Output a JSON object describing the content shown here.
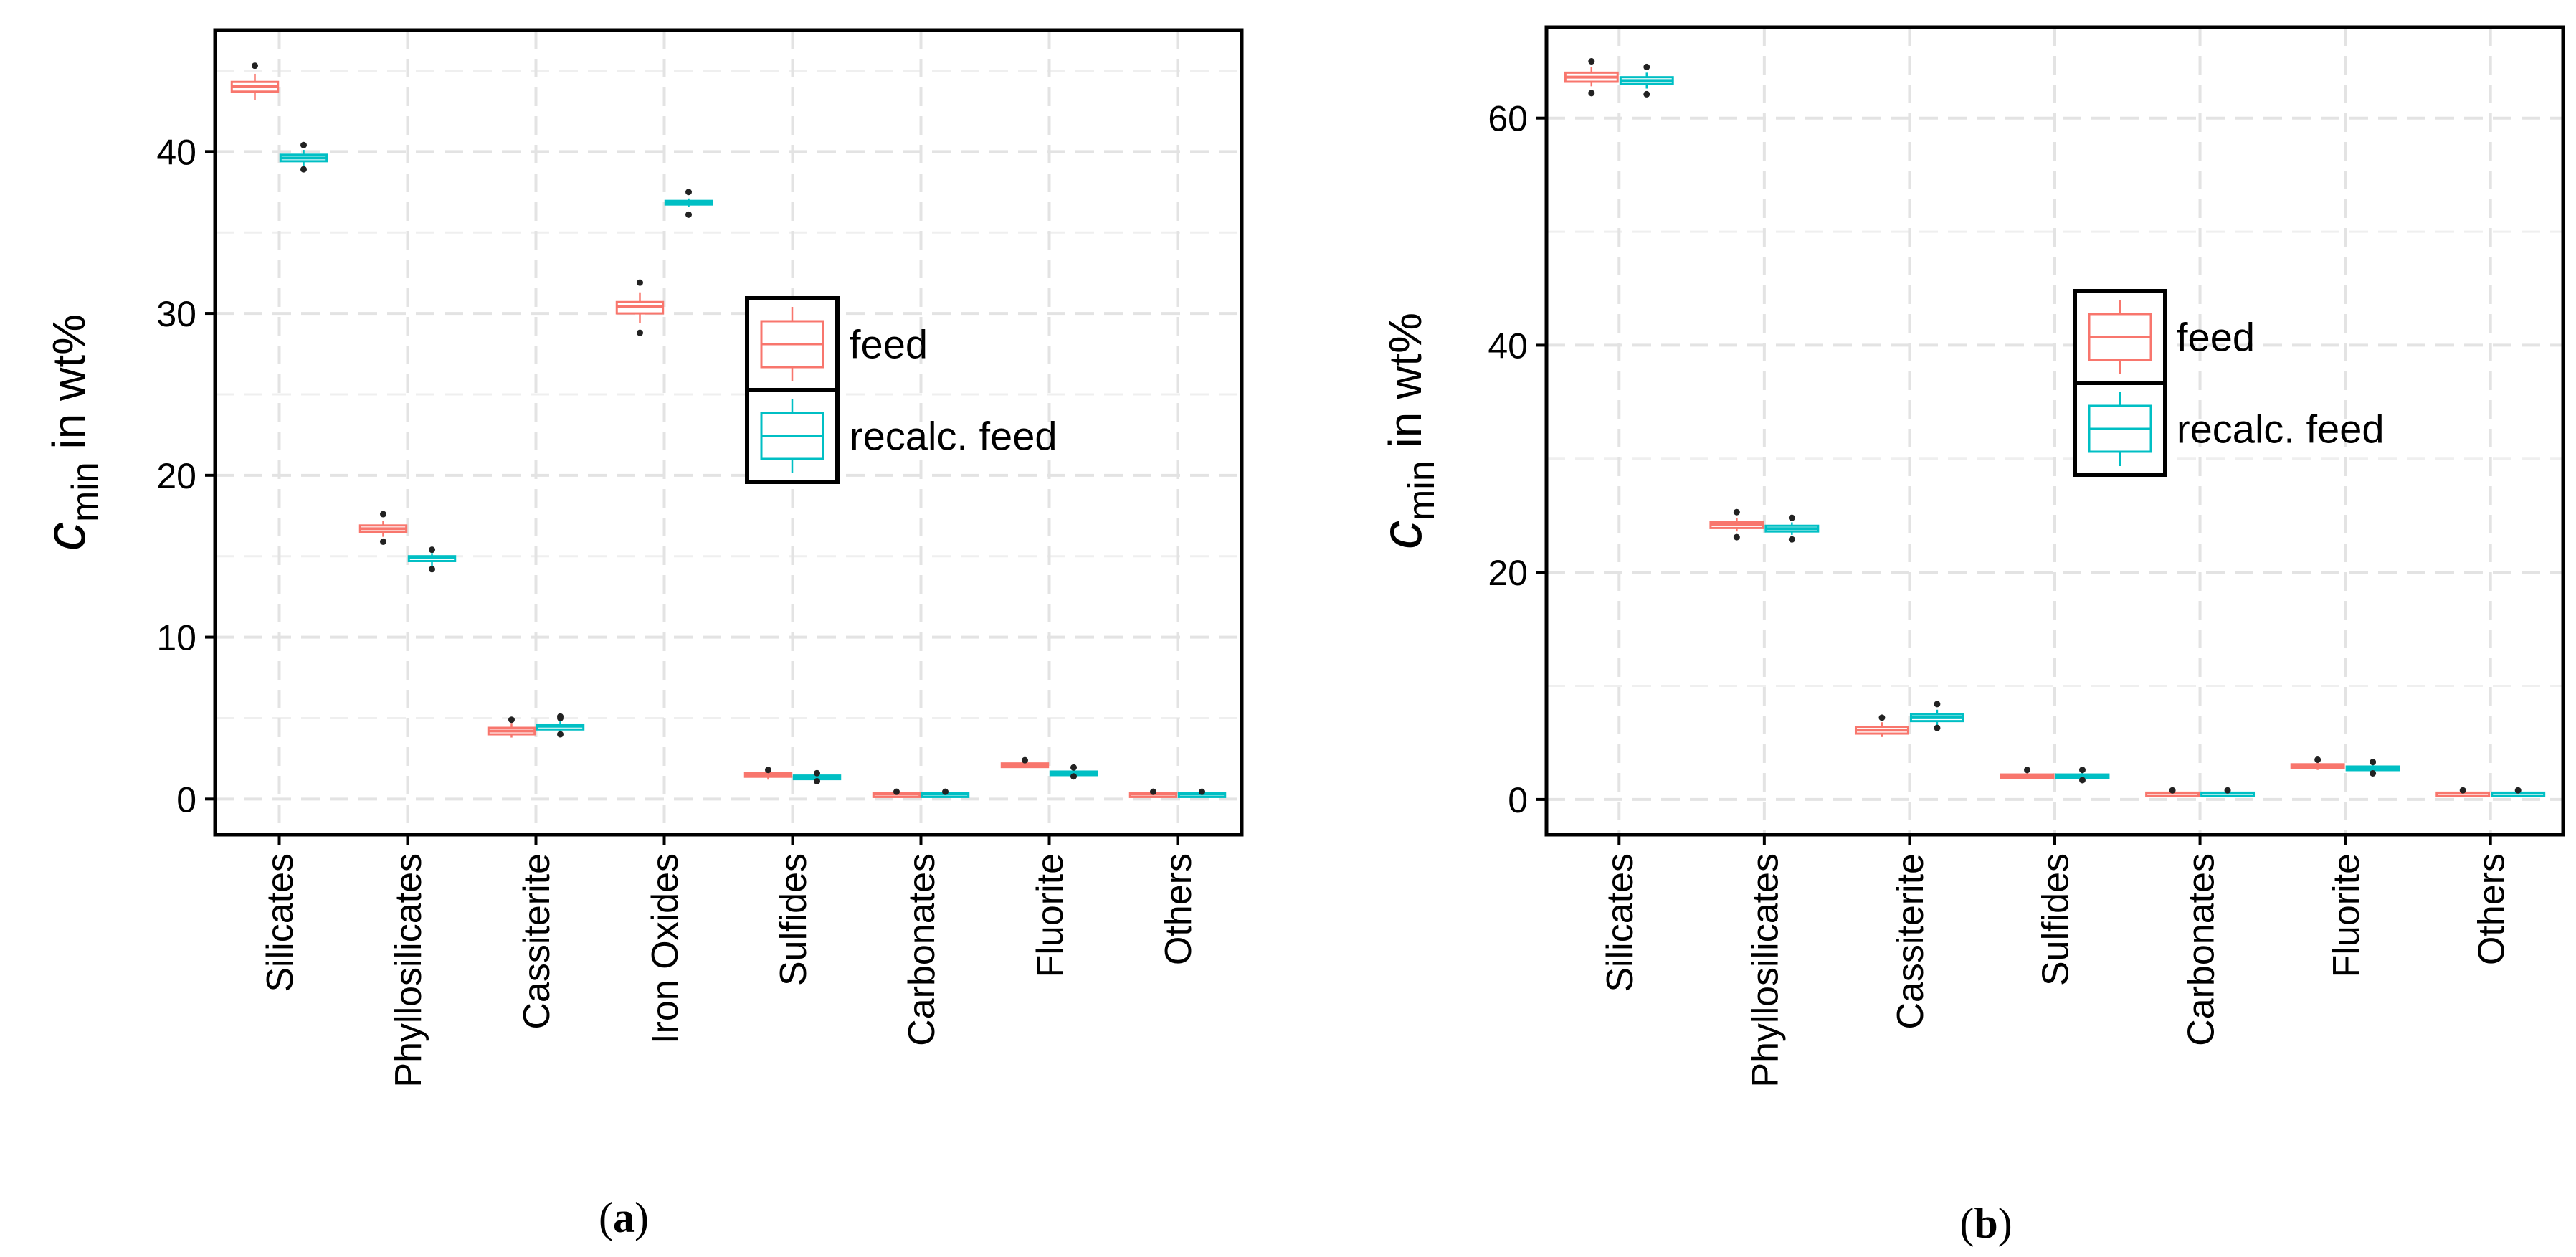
{
  "chart_data": [
    {
      "id": "a",
      "type": "boxplot",
      "caption": "a",
      "ylabel_main": "c",
      "ylabel_sub": "min",
      "ylabel_rest": " in wt%",
      "ylim": [
        -2.2,
        47.5
      ],
      "yticks": [
        0,
        10,
        20,
        30,
        40
      ],
      "ytick_labels": [
        "0",
        "10",
        "20",
        "30",
        "40"
      ],
      "grid": true,
      "legend_position": "center-right",
      "categories": [
        "Silicates",
        "Phyllosilicates",
        "Cassiterite",
        "Iron Oxides",
        "Sulfides",
        "Carbonates",
        "Fluorite",
        "Others"
      ],
      "series": [
        {
          "name": "feed",
          "color": "#F8766D",
          "boxes": [
            {
              "min": 43.2,
              "q1": 43.7,
              "median": 44.0,
              "q3": 44.3,
              "max": 44.8,
              "outliers": [
                45.3
              ]
            },
            {
              "min": 16.2,
              "q1": 16.5,
              "median": 16.7,
              "q3": 16.9,
              "max": 17.2,
              "outliers": [
                17.6,
                15.9
              ]
            },
            {
              "min": 3.8,
              "q1": 4.0,
              "median": 4.2,
              "q3": 4.4,
              "max": 4.7,
              "outliers": [
                4.9
              ]
            },
            {
              "min": 29.4,
              "q1": 30.0,
              "median": 30.4,
              "q3": 30.7,
              "max": 31.3,
              "outliers": [
                31.9,
                28.8
              ]
            },
            {
              "min": 1.2,
              "q1": 1.4,
              "median": 1.5,
              "q3": 1.6,
              "max": 1.7,
              "outliers": [
                1.8
              ]
            },
            {
              "min": 0.2,
              "q1": 0.25,
              "median": 0.3,
              "q3": 0.35,
              "max": 0.4,
              "outliers": [
                0.45
              ]
            },
            {
              "min": 1.95,
              "q1": 2.05,
              "median": 2.1,
              "q3": 2.2,
              "max": 2.3,
              "outliers": [
                2.4
              ]
            },
            {
              "min": 0.2,
              "q1": 0.25,
              "median": 0.3,
              "q3": 0.35,
              "max": 0.4,
              "outliers": [
                0.45
              ]
            }
          ]
        },
        {
          "name": "recalc. feed",
          "color": "#00BFC4",
          "boxes": [
            {
              "min": 39.1,
              "q1": 39.4,
              "median": 39.6,
              "q3": 39.8,
              "max": 40.1,
              "outliers": [
                40.4,
                38.9
              ]
            },
            {
              "min": 14.4,
              "q1": 14.7,
              "median": 14.9,
              "q3": 15.0,
              "max": 15.2,
              "outliers": [
                15.4,
                14.2
              ]
            },
            {
              "min": 4.1,
              "q1": 4.3,
              "median": 4.5,
              "q3": 4.6,
              "max": 4.9,
              "outliers": [
                5.1,
                5.0,
                4.0
              ]
            },
            {
              "min": 36.6,
              "q1": 36.75,
              "median": 36.85,
              "q3": 36.95,
              "max": 37.1,
              "outliers": [
                37.5,
                36.1
              ]
            },
            {
              "min": 1.15,
              "q1": 1.3,
              "median": 1.35,
              "q3": 1.45,
              "max": 1.5,
              "outliers": [
                1.6,
                1.1
              ]
            },
            {
              "min": 0.2,
              "q1": 0.25,
              "median": 0.3,
              "q3": 0.35,
              "max": 0.4,
              "outliers": [
                0.45
              ]
            },
            {
              "min": 1.5,
              "q1": 1.6,
              "median": 1.65,
              "q3": 1.7,
              "max": 1.8,
              "outliers": [
                1.95,
                1.4
              ]
            },
            {
              "min": 0.2,
              "q1": 0.25,
              "median": 0.3,
              "q3": 0.35,
              "max": 0.4,
              "outliers": [
                0.45
              ]
            }
          ]
        }
      ]
    },
    {
      "id": "b",
      "type": "boxplot",
      "caption": "b",
      "ylabel_main": "c",
      "ylabel_sub": "min",
      "ylabel_rest": " in wt%",
      "ylim": [
        -3.1,
        68
      ],
      "yticks": [
        0,
        20,
        40,
        60
      ],
      "ytick_labels": [
        "0",
        "20",
        "40",
        "60"
      ],
      "grid": true,
      "legend_position": "center-right",
      "categories": [
        "Silicates",
        "Phyllosilicates",
        "Cassiterite",
        "Sulfides",
        "Carbonates",
        "Fluorite",
        "Others"
      ],
      "series": [
        {
          "name": "feed",
          "color": "#F8766D",
          "boxes": [
            {
              "min": 62.8,
              "q1": 63.2,
              "median": 63.6,
              "q3": 64.0,
              "max": 64.5,
              "outliers": [
                65.0,
                62.2
              ]
            },
            {
              "min": 23.6,
              "q1": 23.9,
              "median": 24.2,
              "q3": 24.4,
              "max": 24.8,
              "outliers": [
                25.3,
                23.1
              ]
            },
            {
              "min": 5.5,
              "q1": 5.8,
              "median": 6.1,
              "q3": 6.4,
              "max": 6.8,
              "outliers": [
                7.2
              ]
            },
            {
              "min": 1.8,
              "q1": 2.0,
              "median": 2.1,
              "q3": 2.2,
              "max": 2.4,
              "outliers": [
                2.6
              ]
            },
            {
              "min": 0.4,
              "q1": 0.5,
              "median": 0.55,
              "q3": 0.6,
              "max": 0.7,
              "outliers": [
                0.8
              ]
            },
            {
              "min": 2.6,
              "q1": 2.8,
              "median": 2.95,
              "q3": 3.1,
              "max": 3.3,
              "outliers": [
                3.5
              ]
            },
            {
              "min": 0.4,
              "q1": 0.5,
              "median": 0.55,
              "q3": 0.6,
              "max": 0.7,
              "outliers": [
                0.8
              ]
            }
          ]
        },
        {
          "name": "recalc. feed",
          "color": "#00BFC4",
          "boxes": [
            {
              "min": 62.6,
              "q1": 63.0,
              "median": 63.3,
              "q3": 63.6,
              "max": 64.0,
              "outliers": [
                64.5,
                62.1
              ]
            },
            {
              "min": 23.3,
              "q1": 23.6,
              "median": 23.85,
              "q3": 24.1,
              "max": 24.4,
              "outliers": [
                24.8,
                22.9
              ]
            },
            {
              "min": 6.5,
              "q1": 6.9,
              "median": 7.2,
              "q3": 7.5,
              "max": 7.9,
              "outliers": [
                8.4,
                6.3
              ]
            },
            {
              "min": 1.8,
              "q1": 2.0,
              "median": 2.1,
              "q3": 2.2,
              "max": 2.4,
              "outliers": [
                2.6,
                1.7
              ]
            },
            {
              "min": 0.4,
              "q1": 0.5,
              "median": 0.55,
              "q3": 0.6,
              "max": 0.7,
              "outliers": [
                0.8
              ]
            },
            {
              "min": 2.4,
              "q1": 2.6,
              "median": 2.75,
              "q3": 2.9,
              "max": 3.1,
              "outliers": [
                3.3,
                2.3
              ]
            },
            {
              "min": 0.4,
              "q1": 0.5,
              "median": 0.55,
              "q3": 0.6,
              "max": 0.7,
              "outliers": [
                0.8
              ]
            }
          ]
        }
      ]
    }
  ]
}
